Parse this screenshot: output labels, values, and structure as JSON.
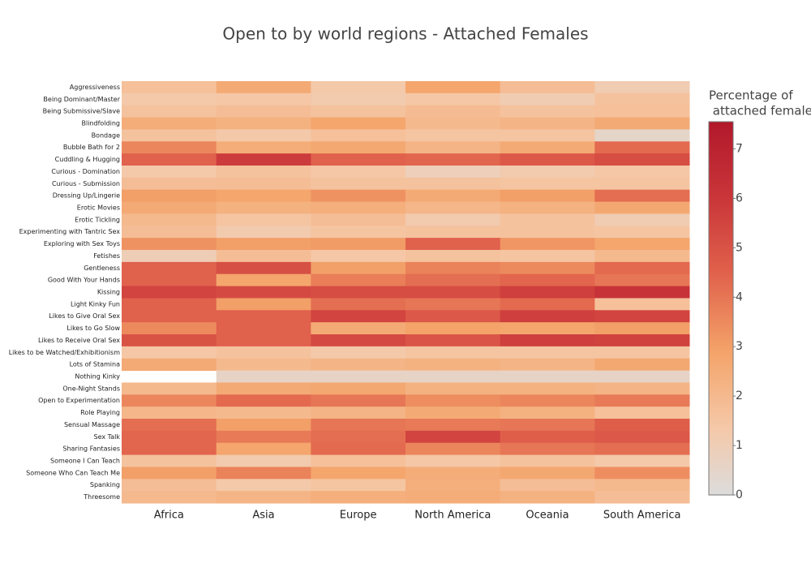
{
  "chart_data": {
    "type": "heatmap",
    "title": "Open to by world regions - Attached Females",
    "colorbar_title": [
      "Percentage of",
      " attached females"
    ],
    "x": [
      "Africa",
      "Asia",
      "Europe",
      "North America",
      "Oceania",
      "South America"
    ],
    "y": [
      "Aggressiveness",
      "Being Dominant/Master",
      "Being Submissive/Slave",
      "Blindfolding",
      "Bondage",
      "Bubble Bath for 2",
      "Cuddling & Hugging",
      "Curious - Domination",
      "Curious - Submission",
      "Dressing Up/Lingerie",
      "Erotic Movies",
      "Erotic Tickling",
      "Experimenting with Tantric Sex",
      "Exploring with Sex Toys",
      "Fetishes",
      "Gentleness",
      "Good With Your Hands",
      "Kissing",
      "Light Kinky Fun",
      "Likes to Give Oral Sex",
      "Likes to Go Slow",
      "Likes to Receive Oral Sex",
      "Likes to be Watched/Exhibitionism",
      "Lots of Stamina",
      "Nothing Kinky",
      "One-Night Stands",
      "Open to Experimentation",
      "Role Playing",
      "Sensual Massage",
      "Sex Talk",
      "Sharing Fantasies",
      "Someone I Can Teach",
      "Someone Who Can Teach Me",
      "Spanking",
      "Threesome"
    ],
    "z": [
      [
        1.7,
        2.6,
        1.3,
        2.8,
        1.8,
        1.1
      ],
      [
        1.3,
        1.4,
        1.2,
        1.4,
        1.1,
        1.6
      ],
      [
        1.6,
        1.8,
        1.6,
        1.9,
        1.6,
        1.7
      ],
      [
        2.5,
        2.3,
        2.8,
        2.0,
        2.2,
        2.6
      ],
      [
        1.6,
        1.3,
        1.7,
        1.5,
        1.5,
        0.5
      ],
      [
        3.6,
        2.5,
        2.7,
        2.2,
        2.6,
        4.3
      ],
      [
        4.5,
        5.8,
        4.5,
        4.4,
        4.8,
        5.2
      ],
      [
        1.3,
        1.6,
        1.4,
        0.9,
        1.2,
        1.4
      ],
      [
        1.8,
        1.8,
        1.6,
        1.6,
        1.5,
        1.5
      ],
      [
        3.0,
        2.8,
        3.3,
        2.6,
        3.0,
        4.2
      ],
      [
        2.6,
        2.3,
        2.4,
        2.1,
        2.3,
        2.7
      ],
      [
        2.0,
        1.5,
        1.8,
        1.2,
        1.6,
        1.1
      ],
      [
        1.8,
        1.2,
        1.5,
        1.6,
        1.6,
        1.5
      ],
      [
        3.3,
        3.0,
        3.1,
        4.5,
        3.2,
        2.8
      ],
      [
        1.0,
        1.8,
        1.4,
        1.6,
        1.5,
        2.0
      ],
      [
        4.5,
        5.1,
        3.0,
        3.7,
        3.5,
        4.3
      ],
      [
        4.5,
        2.8,
        3.8,
        4.2,
        4.4,
        4.0
      ],
      [
        5.5,
        5.3,
        5.2,
        5.2,
        5.7,
        6.2
      ],
      [
        4.5,
        3.0,
        4.2,
        4.0,
        4.3,
        1.7
      ],
      [
        4.5,
        4.5,
        5.5,
        4.8,
        5.7,
        5.5
      ],
      [
        3.5,
        4.5,
        2.6,
        2.9,
        2.8,
        3.0
      ],
      [
        5.0,
        4.5,
        5.3,
        4.9,
        5.7,
        5.6
      ],
      [
        1.4,
        1.6,
        1.3,
        1.5,
        1.5,
        1.5
      ],
      [
        2.6,
        2.0,
        2.2,
        2.3,
        2.2,
        2.7
      ],
      [
        null,
        0.6,
        0.6,
        0.6,
        0.6,
        0.6
      ],
      [
        2.0,
        2.6,
        2.7,
        2.3,
        2.3,
        2.2
      ],
      [
        3.6,
        4.3,
        4.0,
        3.4,
        3.6,
        3.9
      ],
      [
        2.1,
        2.0,
        2.2,
        2.6,
        2.3,
        1.7
      ],
      [
        4.2,
        3.0,
        4.0,
        3.9,
        4.0,
        4.6
      ],
      [
        4.4,
        3.9,
        4.2,
        5.5,
        4.6,
        4.8
      ],
      [
        4.4,
        2.8,
        4.3,
        3.6,
        4.0,
        4.2
      ],
      [
        1.6,
        1.2,
        1.7,
        1.4,
        1.6,
        1.3
      ],
      [
        3.0,
        3.7,
        2.8,
        2.5,
        2.7,
        3.4
      ],
      [
        1.8,
        1.3,
        1.5,
        2.4,
        1.8,
        2.0
      ],
      [
        2.0,
        2.2,
        2.4,
        2.5,
        2.3,
        1.8
      ]
    ],
    "zlim": [
      0,
      7.55
    ],
    "zticks": [
      0,
      1,
      2,
      3,
      4,
      5,
      6,
      7
    ],
    "colorscale": [
      [
        0,
        "#dcdcdc"
      ],
      [
        0.18,
        "#f5c8a8"
      ],
      [
        0.38,
        "#f4a46a"
      ],
      [
        0.6,
        "#e0604b"
      ],
      [
        0.8,
        "#c93539"
      ],
      [
        1,
        "#b2182b"
      ]
    ]
  }
}
